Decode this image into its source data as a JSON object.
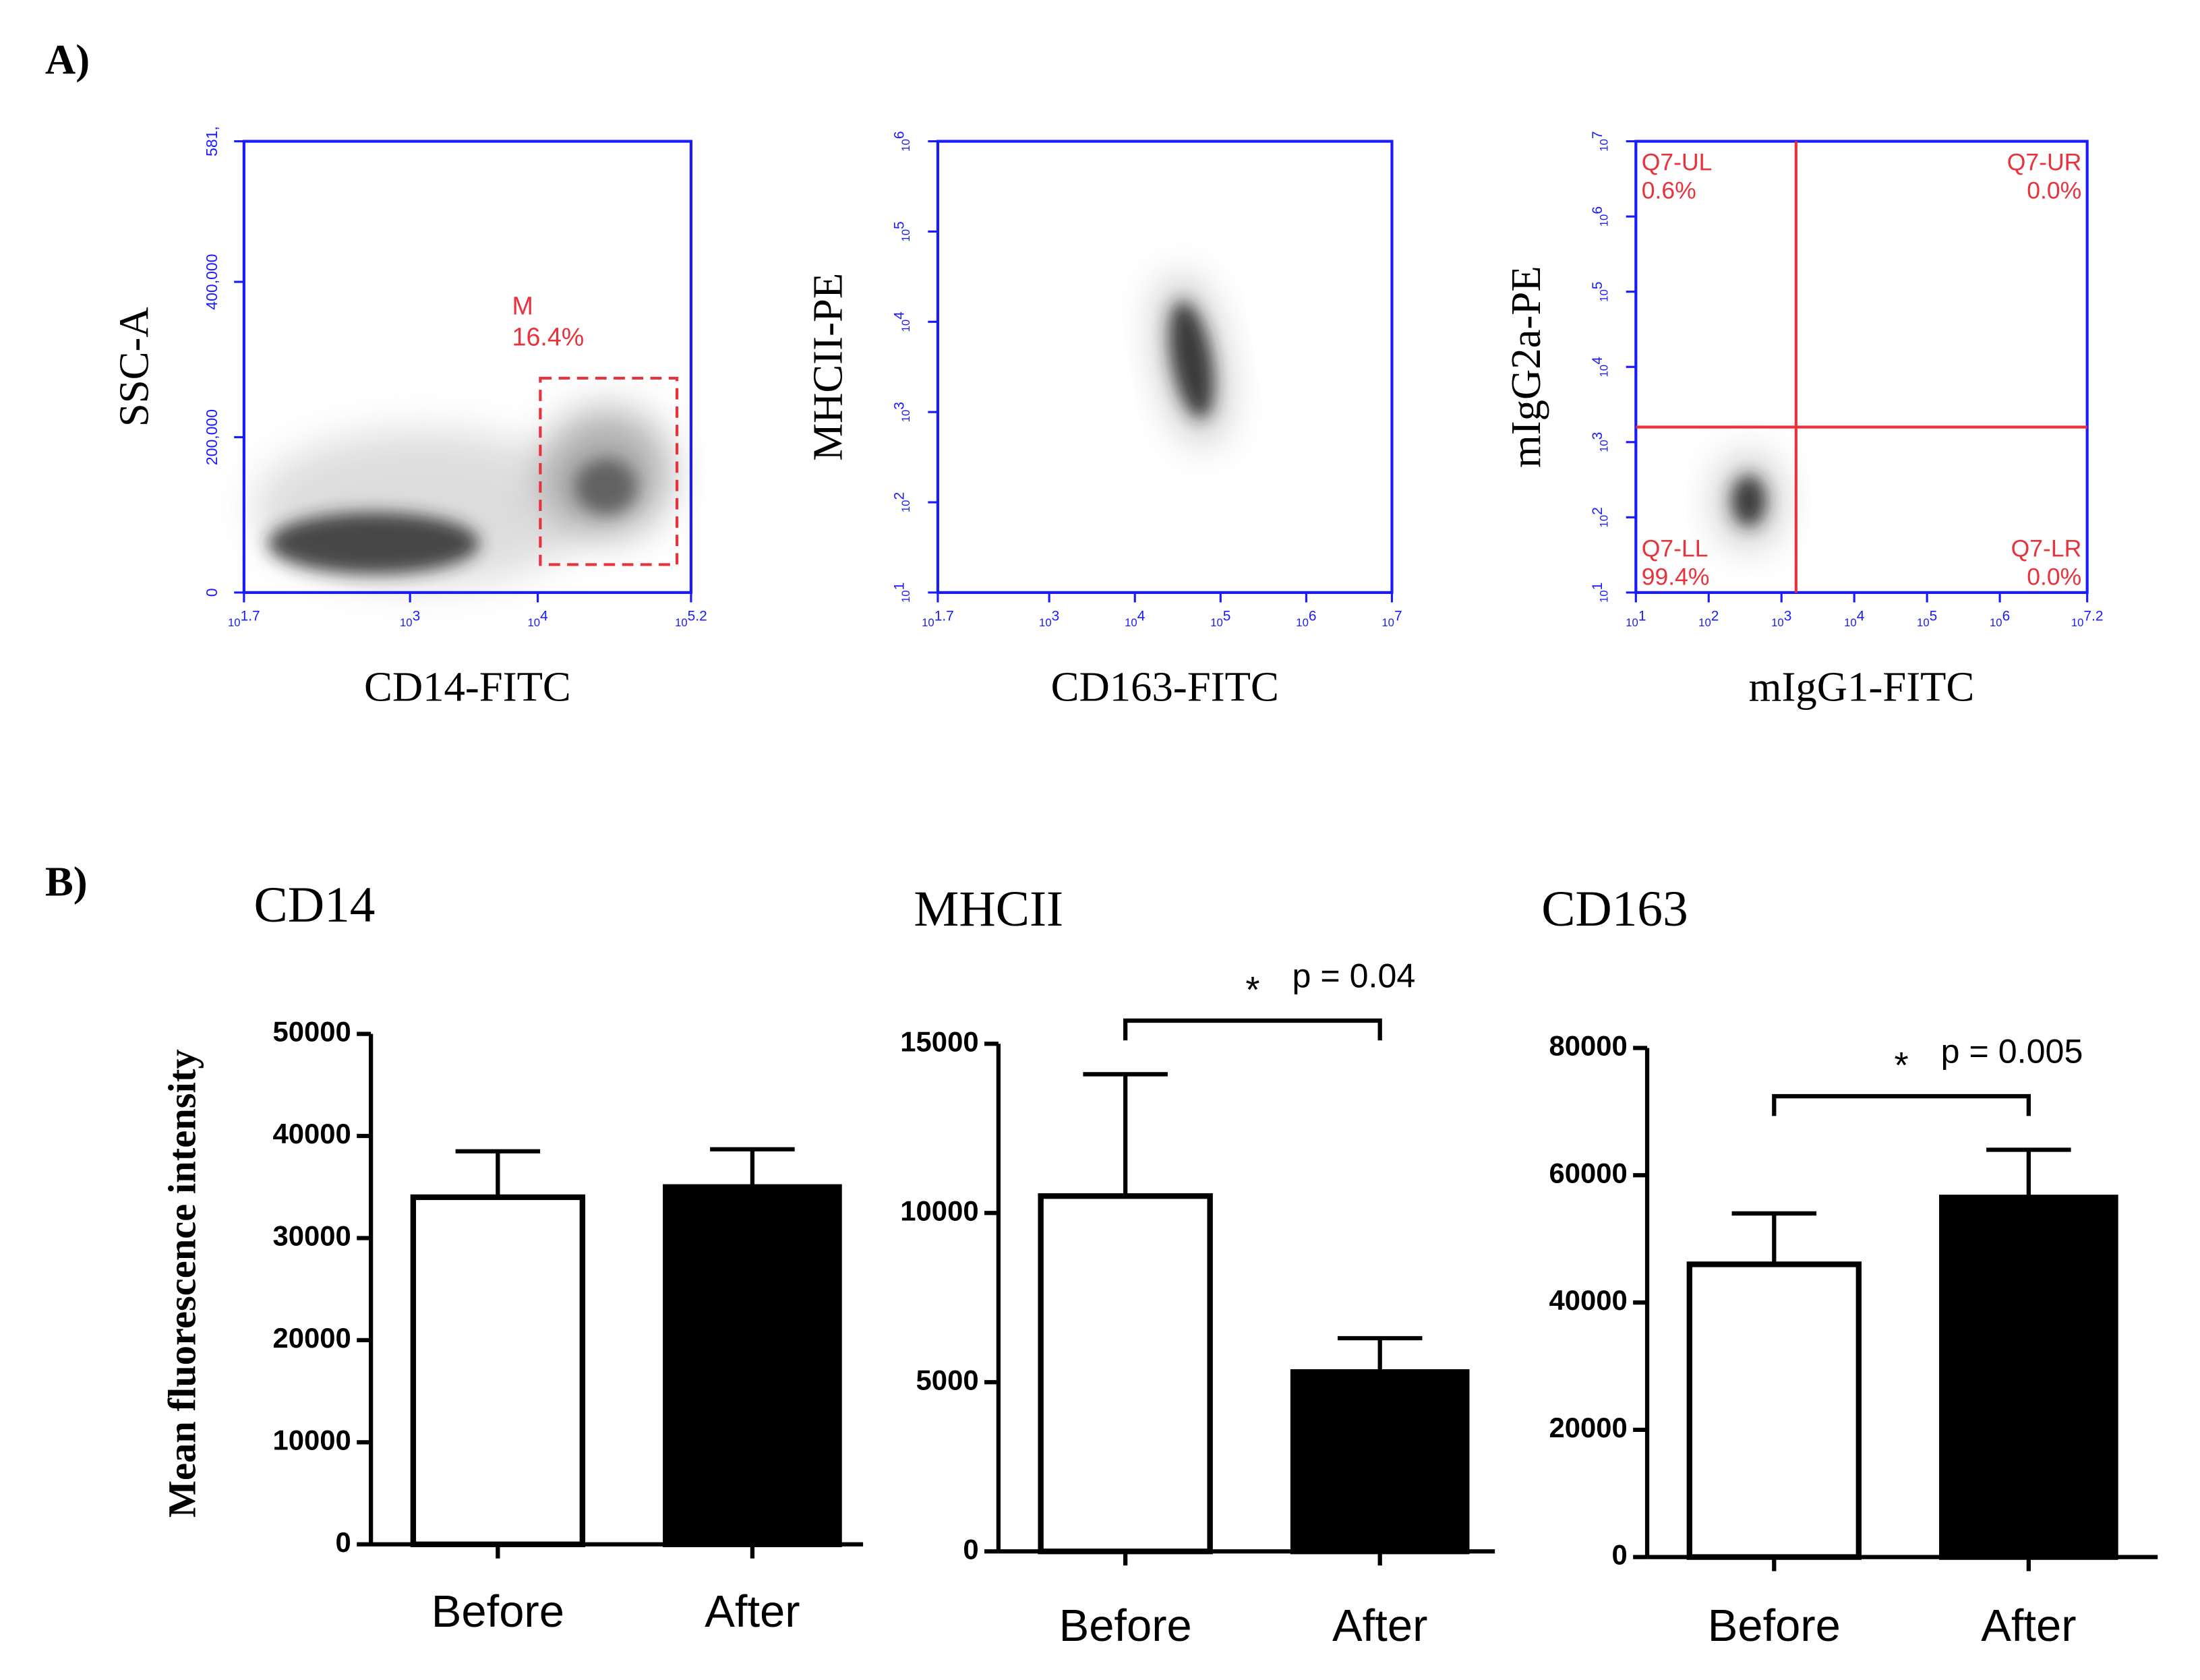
{
  "panels": [
    "A)",
    "B)"
  ],
  "bar_ylabel": "Mean fluorescence intensity",
  "chart_data": [
    {
      "type": "flow",
      "xlabel": "CD14-FITC",
      "ylabel": "SSC-A",
      "xtick_base": "10",
      "xlim": [
        1.7,
        5.2
      ],
      "xticks": [
        1.7,
        3,
        4,
        5.2
      ],
      "ylim": [
        0,
        581000
      ],
      "yticks": [
        0,
        {
          "value": 200000,
          "label": "200,000"
        },
        {
          "value": 400000,
          "label": "400,000"
        },
        {
          "value": 581000,
          "label": "581,"
        }
      ],
      "axis_color": "#1a1aff",
      "gate": {
        "name": "M",
        "percent": "16.4%",
        "x": [
          4.02,
          5.09
        ],
        "y": [
          36000,
          276000
        ],
        "color": "#e8323c"
      }
    },
    {
      "type": "flow",
      "xlabel": "CD163-FITC",
      "ylabel": "MHCII-PE",
      "xtick_base": "10",
      "xlim": [
        1.7,
        7
      ],
      "xticks": [
        1.7,
        3,
        4,
        5,
        6,
        7
      ],
      "ytick_base": "10",
      "ylim": [
        1,
        6
      ],
      "yticks": [
        1,
        2,
        3,
        4,
        5,
        6
      ],
      "axis_color": "#1a1aff"
    },
    {
      "type": "flow",
      "xlabel": "mIgG1-FITC",
      "ylabel": "mIgG2a-PE",
      "xtick_base": "10",
      "xlim": [
        1,
        7.2
      ],
      "xticks": [
        1,
        2,
        3,
        4,
        5,
        6,
        7.2
      ],
      "ytick_base": "10",
      "ylim": [
        1,
        7
      ],
      "yticks": [
        1,
        2,
        3,
        4,
        5,
        6,
        7
      ],
      "axis_color": "#1a1aff",
      "quadrants": {
        "x": 3.2,
        "y": 3.2,
        "color": "#e8323c",
        "labels": [
          {
            "name": "Q7-UL",
            "percent": "0.6%"
          },
          {
            "name": "Q7-UR",
            "percent": "0.0%"
          },
          {
            "name": "Q7-LL",
            "percent": "99.4%"
          },
          {
            "name": "Q7-LR",
            "percent": "0.0%"
          }
        ]
      }
    },
    {
      "type": "bar",
      "title": "CD14",
      "categories": [
        "Before",
        "After"
      ],
      "values": [
        34000,
        35000
      ],
      "errors": [
        4500,
        3700
      ],
      "colors": [
        "#ffffff",
        "#000000"
      ],
      "ylim": [
        0,
        50000
      ],
      "yticks": [
        0,
        10000,
        20000,
        30000,
        40000,
        50000
      ]
    },
    {
      "type": "bar",
      "title": "MHCII",
      "categories": [
        "Before",
        "After"
      ],
      "values": [
        10500,
        5300
      ],
      "errors": [
        3600,
        1000
      ],
      "colors": [
        "#ffffff",
        "#000000"
      ],
      "ylim": [
        0,
        15000
      ],
      "yticks": [
        0,
        5000,
        10000,
        15000
      ],
      "significance": {
        "marker": "*",
        "text": "p = 0.04"
      }
    },
    {
      "type": "bar",
      "title": "CD163",
      "categories": [
        "Before",
        "After"
      ],
      "values": [
        46000,
        56500
      ],
      "errors": [
        8000,
        7500
      ],
      "colors": [
        "#ffffff",
        "#000000"
      ],
      "ylim": [
        0,
        80000
      ],
      "yticks": [
        0,
        20000,
        40000,
        60000,
        80000
      ],
      "significance": {
        "marker": "*",
        "text": "p = 0.005"
      }
    }
  ]
}
